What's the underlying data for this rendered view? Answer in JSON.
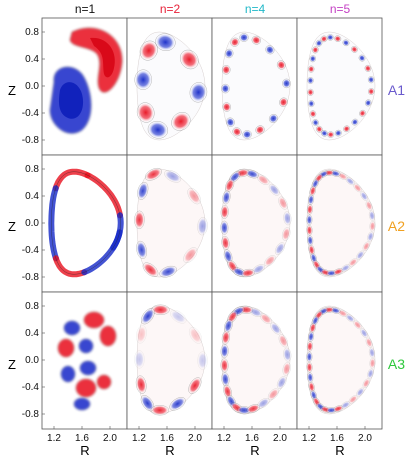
{
  "columns": [
    {
      "label": "n=1",
      "color": "#111111"
    },
    {
      "label": "n=2",
      "color": "#e8223a"
    },
    {
      "label": "n=4",
      "color": "#20b8c8"
    },
    {
      "label": "n=5",
      "color": "#c440c4"
    }
  ],
  "rows": [
    {
      "label": "A1",
      "color": "#6a5acd",
      "patterns": [
        "a1n1",
        "ring",
        "ring",
        "ring"
      ],
      "modes": [
        1,
        8,
        16,
        26
      ]
    },
    {
      "label": "A2",
      "color": "#f0a020",
      "patterns": [
        "a2n1",
        "ring",
        "ring",
        "ring"
      ],
      "modes": [
        2,
        10,
        20,
        30
      ]
    },
    {
      "label": "A3",
      "color": "#2ec83c",
      "patterns": [
        "a3n1",
        "ring",
        "ring",
        "ring"
      ],
      "modes": [
        3,
        12,
        22,
        30
      ]
    }
  ],
  "axes": {
    "y_label": "Z",
    "x_label": "R",
    "y_ticks": [
      "0.8",
      "0.4",
      "0.0",
      "-0.4",
      "-0.8"
    ],
    "x_ticks": [
      "1.2",
      "1.6",
      "2.0"
    ]
  },
  "colors": {
    "positive": "#e8101e",
    "negative": "#1428c8",
    "frame": "#555555",
    "contour": "#222222"
  }
}
